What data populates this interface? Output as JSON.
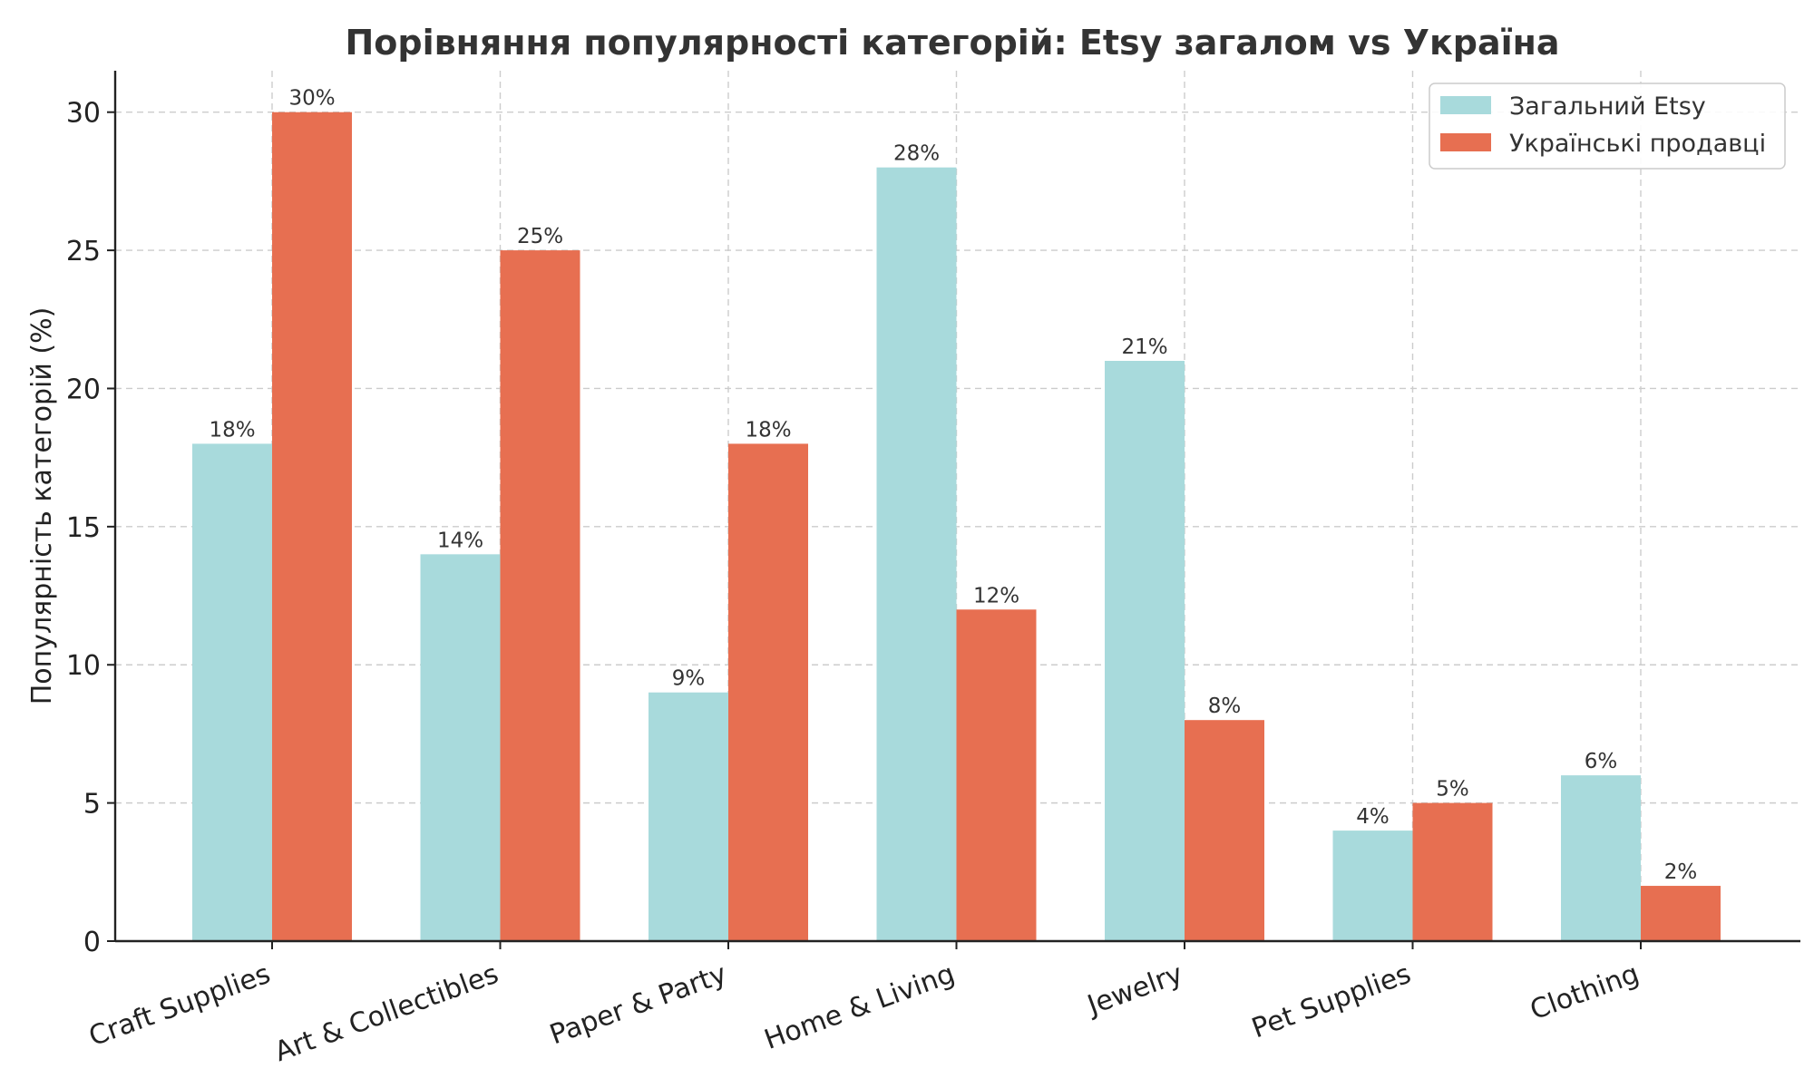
{
  "chart_data": {
    "type": "bar",
    "title": "Порівняння популярності категорій: Etsy загалом vs Україна",
    "xlabel": "",
    "ylabel": "Популярність категорій (%)",
    "ylim": [
      0,
      31.5
    ],
    "yticks": [
      0,
      5,
      10,
      15,
      20,
      25,
      30
    ],
    "grid": true,
    "legend_position": "top-right",
    "categories": [
      "Craft Supplies",
      "Art & Collectibles",
      "Paper & Party",
      "Home & Living",
      "Jewelry",
      "Pet Supplies",
      "Clothing"
    ],
    "series": [
      {
        "name": "Загальний Etsy",
        "color": "#a8dadc",
        "values": [
          18,
          14,
          9,
          28,
          21,
          4,
          6
        ],
        "labels": [
          "18%",
          "14%",
          "9%",
          "28%",
          "21%",
          "4%",
          "6%"
        ]
      },
      {
        "name": "Українські продавці",
        "color": "#e76f51",
        "values": [
          30,
          25,
          18,
          12,
          8,
          5,
          2
        ],
        "labels": [
          "30%",
          "25%",
          "18%",
          "12%",
          "8%",
          "5%",
          "2%"
        ]
      }
    ]
  }
}
